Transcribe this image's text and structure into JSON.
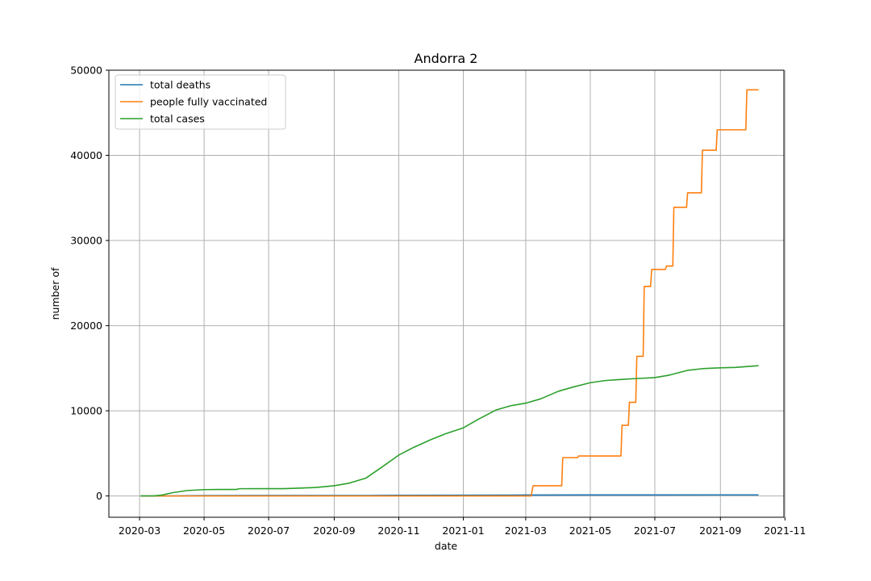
{
  "chart_data": {
    "type": "line",
    "title": "Andorra 2",
    "xlabel": "date",
    "ylabel": "number of",
    "xlim": [
      "2020-02-01",
      "2021-10-31"
    ],
    "ylim": [
      -2500,
      50000
    ],
    "grid": true,
    "legend_position": "top-left",
    "x_ticks": [
      "2020-03",
      "2020-05",
      "2020-07",
      "2020-09",
      "2020-11",
      "2021-01",
      "2021-03",
      "2021-05",
      "2021-07",
      "2021-09",
      "2021-11"
    ],
    "y_ticks": [
      "0",
      "10000",
      "20000",
      "30000",
      "40000",
      "50000"
    ],
    "series": [
      {
        "name": "total deaths",
        "color": "#1f77b4",
        "points": [
          [
            "2020-03-02",
            0
          ],
          [
            "2020-03-22",
            0
          ],
          [
            "2020-04-10",
            20
          ],
          [
            "2020-05-01",
            42
          ],
          [
            "2020-07-01",
            52
          ],
          [
            "2020-09-01",
            53
          ],
          [
            "2020-10-01",
            55
          ],
          [
            "2020-11-01",
            75
          ],
          [
            "2021-01-01",
            85
          ],
          [
            "2021-03-01",
            112
          ],
          [
            "2021-05-01",
            125
          ],
          [
            "2021-07-01",
            127
          ],
          [
            "2021-09-01",
            130
          ],
          [
            "2021-10-07",
            130
          ]
        ]
      },
      {
        "name": "people fully vaccinated",
        "color": "#ff7f0e",
        "points": [
          [
            "2020-03-02",
            0
          ],
          [
            "2021-03-06",
            0
          ],
          [
            "2021-03-08",
            1200
          ],
          [
            "2021-04-04",
            1200
          ],
          [
            "2021-04-05",
            4500
          ],
          [
            "2021-04-19",
            4500
          ],
          [
            "2021-04-20",
            4700
          ],
          [
            "2021-05-30",
            4700
          ],
          [
            "2021-05-31",
            8300
          ],
          [
            "2021-06-06",
            8300
          ],
          [
            "2021-06-07",
            11000
          ],
          [
            "2021-06-13",
            11000
          ],
          [
            "2021-06-14",
            16400
          ],
          [
            "2021-06-20",
            16400
          ],
          [
            "2021-06-21",
            24600
          ],
          [
            "2021-06-27",
            24600
          ],
          [
            "2021-06-28",
            26600
          ],
          [
            "2021-07-11",
            26600
          ],
          [
            "2021-07-12",
            27000
          ],
          [
            "2021-07-18",
            27000
          ],
          [
            "2021-07-19",
            33900
          ],
          [
            "2021-07-31",
            33900
          ],
          [
            "2021-08-01",
            35600
          ],
          [
            "2021-08-14",
            35600
          ],
          [
            "2021-08-15",
            40600
          ],
          [
            "2021-08-28",
            40600
          ],
          [
            "2021-08-29",
            43000
          ],
          [
            "2021-09-25",
            43000
          ],
          [
            "2021-09-26",
            47700
          ],
          [
            "2021-10-07",
            47700
          ]
        ]
      },
      {
        "name": "total cases",
        "color": "#2ca02c",
        "points": [
          [
            "2020-03-02",
            1
          ],
          [
            "2020-03-15",
            14
          ],
          [
            "2020-03-22",
            100
          ],
          [
            "2020-04-01",
            380
          ],
          [
            "2020-04-15",
            640
          ],
          [
            "2020-05-01",
            745
          ],
          [
            "2020-05-15",
            762
          ],
          [
            "2020-06-01",
            765
          ],
          [
            "2020-06-03",
            852
          ],
          [
            "2020-07-01",
            855
          ],
          [
            "2020-07-15",
            860
          ],
          [
            "2020-08-01",
            930
          ],
          [
            "2020-08-15",
            1000
          ],
          [
            "2020-09-01",
            1200
          ],
          [
            "2020-09-15",
            1500
          ],
          [
            "2020-10-01",
            2100
          ],
          [
            "2020-10-15",
            3300
          ],
          [
            "2020-11-01",
            4800
          ],
          [
            "2020-11-15",
            5700
          ],
          [
            "2020-12-01",
            6600
          ],
          [
            "2020-12-15",
            7300
          ],
          [
            "2021-01-01",
            8000
          ],
          [
            "2021-01-15",
            9000
          ],
          [
            "2021-02-01",
            10100
          ],
          [
            "2021-02-15",
            10600
          ],
          [
            "2021-03-01",
            10900
          ],
          [
            "2021-03-15",
            11400
          ],
          [
            "2021-04-01",
            12300
          ],
          [
            "2021-04-15",
            12800
          ],
          [
            "2021-05-01",
            13300
          ],
          [
            "2021-05-15",
            13550
          ],
          [
            "2021-06-01",
            13700
          ],
          [
            "2021-06-15",
            13800
          ],
          [
            "2021-07-01",
            13900
          ],
          [
            "2021-07-15",
            14200
          ],
          [
            "2021-08-01",
            14750
          ],
          [
            "2021-08-15",
            14950
          ],
          [
            "2021-09-01",
            15050
          ],
          [
            "2021-09-15",
            15100
          ],
          [
            "2021-10-07",
            15300
          ]
        ]
      }
    ]
  }
}
